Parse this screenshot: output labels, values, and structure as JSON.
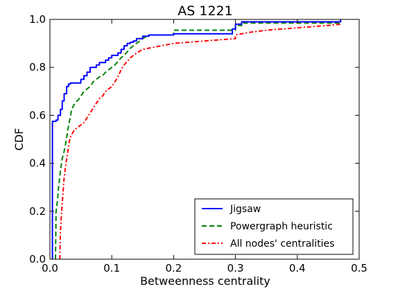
{
  "chart_data": {
    "type": "line",
    "title": "AS 1221",
    "xlabel": "Betweenness centrality",
    "ylabel": "CDF",
    "xlim": [
      0,
      0.5
    ],
    "ylim": [
      0,
      1.0
    ],
    "xticks": [
      "0.0",
      "0.1",
      "0.2",
      "0.3",
      "0.4",
      "0.5"
    ],
    "yticks": [
      "0.0",
      "0.2",
      "0.4",
      "0.6",
      "0.8",
      "1.0"
    ],
    "grid": false,
    "legend_position": "bottom-right",
    "series": [
      {
        "name": "Jigsaw",
        "color": "#0000ff",
        "style": "solid",
        "x": [
          0.004,
          0.004,
          0.01,
          0.01,
          0.013,
          0.013,
          0.017,
          0.017,
          0.02,
          0.02,
          0.023,
          0.023,
          0.027,
          0.027,
          0.03,
          0.03,
          0.033,
          0.033,
          0.05,
          0.05,
          0.055,
          0.055,
          0.06,
          0.06,
          0.065,
          0.065,
          0.07,
          0.07,
          0.075,
          0.075,
          0.08,
          0.08,
          0.09,
          0.09,
          0.095,
          0.095,
          0.1,
          0.1,
          0.11,
          0.11,
          0.115,
          0.115,
          0.12,
          0.12,
          0.125,
          0.125,
          0.13,
          0.13,
          0.135,
          0.135,
          0.14,
          0.14,
          0.15,
          0.15,
          0.16,
          0.16,
          0.2,
          0.2,
          0.295,
          0.295,
          0.3,
          0.3,
          0.31,
          0.31,
          0.47,
          0.47
        ],
        "y": [
          0.0,
          0.575,
          0.575,
          0.58,
          0.58,
          0.6,
          0.6,
          0.625,
          0.625,
          0.66,
          0.66,
          0.69,
          0.69,
          0.72,
          0.72,
          0.73,
          0.73,
          0.735,
          0.735,
          0.75,
          0.75,
          0.765,
          0.765,
          0.78,
          0.78,
          0.8,
          0.8,
          0.8,
          0.8,
          0.81,
          0.81,
          0.82,
          0.82,
          0.83,
          0.83,
          0.84,
          0.84,
          0.85,
          0.85,
          0.86,
          0.86,
          0.875,
          0.875,
          0.89,
          0.89,
          0.9,
          0.9,
          0.905,
          0.905,
          0.91,
          0.91,
          0.92,
          0.92,
          0.93,
          0.93,
          0.935,
          0.935,
          0.94,
          0.94,
          0.96,
          0.96,
          0.98,
          0.98,
          0.99,
          0.99,
          1.0
        ]
      },
      {
        "name": "Powergraph heuristic",
        "color": "#008000",
        "style": "dashed",
        "x": [
          0.009,
          0.01,
          0.012,
          0.014,
          0.017,
          0.02,
          0.023,
          0.026,
          0.029,
          0.032,
          0.035,
          0.038,
          0.042,
          0.046,
          0.05,
          0.055,
          0.06,
          0.065,
          0.07,
          0.075,
          0.08,
          0.085,
          0.09,
          0.095,
          0.1,
          0.105,
          0.11,
          0.115,
          0.12,
          0.125,
          0.13,
          0.14,
          0.15,
          0.16,
          0.2,
          0.2,
          0.3,
          0.3,
          0.31,
          0.31,
          0.47,
          0.47
        ],
        "y": [
          0.0,
          0.2,
          0.24,
          0.3,
          0.37,
          0.42,
          0.45,
          0.49,
          0.54,
          0.58,
          0.62,
          0.64,
          0.655,
          0.665,
          0.68,
          0.7,
          0.71,
          0.72,
          0.74,
          0.75,
          0.76,
          0.765,
          0.78,
          0.79,
          0.8,
          0.81,
          0.825,
          0.84,
          0.85,
          0.865,
          0.88,
          0.9,
          0.92,
          0.935,
          0.935,
          0.955,
          0.955,
          0.975,
          0.975,
          0.985,
          0.985,
          0.995
        ]
      },
      {
        "name": "All nodes' centralities",
        "color": "#ff0000",
        "style": "dashdot",
        "x": [
          0.016,
          0.017,
          0.019,
          0.021,
          0.023,
          0.026,
          0.029,
          0.032,
          0.035,
          0.04,
          0.045,
          0.05,
          0.055,
          0.06,
          0.065,
          0.07,
          0.075,
          0.08,
          0.085,
          0.09,
          0.095,
          0.1,
          0.105,
          0.11,
          0.115,
          0.12,
          0.13,
          0.14,
          0.15,
          0.16,
          0.18,
          0.2,
          0.25,
          0.3,
          0.3,
          0.32,
          0.35,
          0.4,
          0.45,
          0.47
        ],
        "y": [
          0.0,
          0.12,
          0.2,
          0.27,
          0.34,
          0.4,
          0.45,
          0.5,
          0.52,
          0.54,
          0.55,
          0.56,
          0.57,
          0.59,
          0.61,
          0.63,
          0.65,
          0.67,
          0.68,
          0.7,
          0.71,
          0.72,
          0.74,
          0.76,
          0.79,
          0.81,
          0.84,
          0.86,
          0.875,
          0.88,
          0.89,
          0.9,
          0.91,
          0.92,
          0.935,
          0.945,
          0.955,
          0.965,
          0.975,
          0.98
        ]
      }
    ]
  }
}
